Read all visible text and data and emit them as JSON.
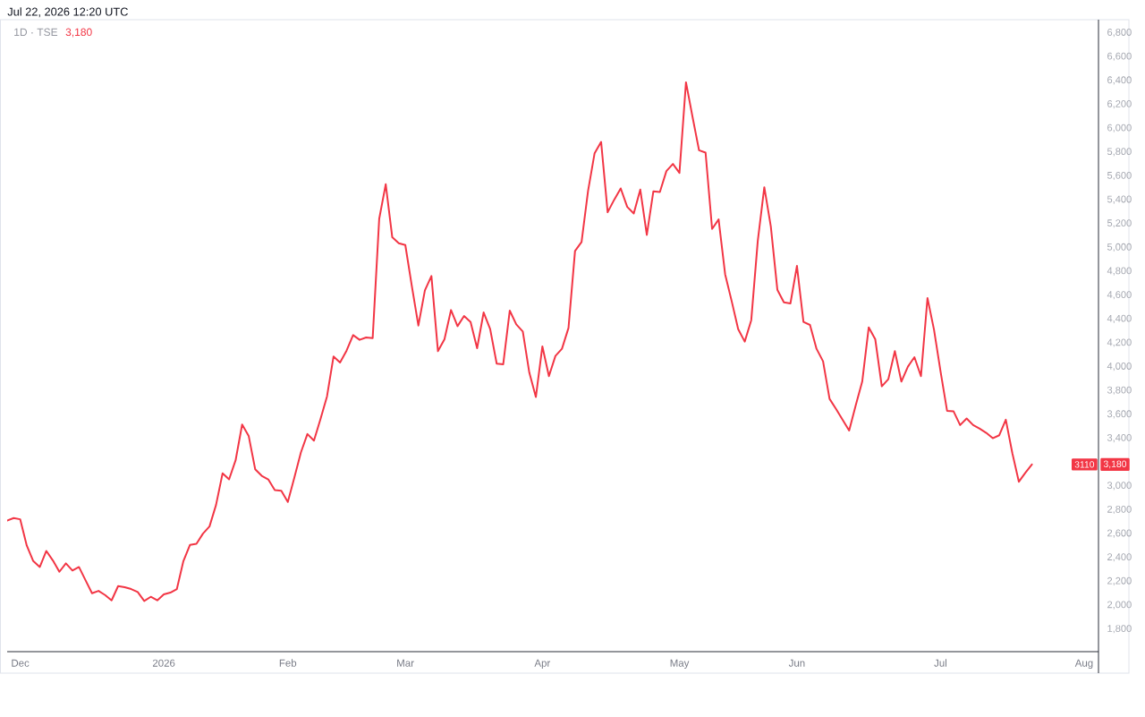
{
  "chart_data": {
    "type": "line",
    "title": "1D · TSE",
    "annotations": [
      "Jul 22, 2026 12:20 UTC",
      "3,180",
      {
        "text": "3110",
        "y": 3180
      },
      {
        "text": "3,180",
        "y": 3180
      }
    ],
    "categories": [
      null,
      null,
      "Dec",
      null,
      null,
      null,
      null,
      null,
      null,
      null,
      null,
      null,
      null,
      null,
      null,
      null,
      null,
      null,
      null,
      null,
      null,
      null,
      null,
      null,
      "2026",
      null,
      null,
      null,
      null,
      null,
      null,
      null,
      null,
      null,
      null,
      null,
      null,
      null,
      null,
      null,
      null,
      null,
      null,
      "Feb",
      null,
      null,
      null,
      null,
      null,
      null,
      null,
      null,
      null,
      null,
      null,
      null,
      null,
      null,
      null,
      null,
      null,
      "Mar",
      null,
      null,
      null,
      null,
      null,
      null,
      null,
      null,
      null,
      null,
      null,
      null,
      null,
      null,
      null,
      null,
      null,
      null,
      null,
      null,
      "Apr",
      null,
      null,
      null,
      null,
      null,
      null,
      null,
      null,
      null,
      null,
      null,
      null,
      null,
      null,
      null,
      null,
      null,
      null,
      null,
      null,
      "May",
      null,
      null,
      null,
      null,
      null,
      null,
      null,
      null,
      null,
      null,
      null,
      null,
      null,
      null,
      null,
      null,
      null,
      "Jun",
      null,
      null,
      null,
      null,
      null,
      null,
      null,
      null,
      null,
      null,
      null,
      null,
      null,
      null,
      null,
      null,
      null,
      null,
      null,
      null,
      null,
      "Jul",
      null,
      null,
      null,
      null,
      null,
      null,
      null,
      null,
      null,
      null,
      null,
      null,
      null,
      null,
      null,
      null,
      null,
      null,
      null,
      null,
      null,
      "Aug",
      null,
      null
    ],
    "values": [
      2710,
      2730,
      2720,
      2500,
      2370,
      2320,
      2455,
      2375,
      2280,
      2350,
      2290,
      2320,
      2210,
      2100,
      2120,
      2085,
      2040,
      2160,
      2150,
      2135,
      2110,
      2035,
      2070,
      2040,
      2090,
      2105,
      2135,
      2370,
      2505,
      2515,
      2600,
      2660,
      2840,
      3105,
      3055,
      3215,
      3515,
      3420,
      3140,
      3085,
      3055,
      2965,
      2960,
      2865,
      3070,
      3280,
      3435,
      3380,
      3560,
      3750,
      4085,
      4035,
      4135,
      4265,
      4225,
      4245,
      4240,
      5240,
      5530,
      5085,
      5035,
      5020,
      4675,
      4345,
      4640,
      4760,
      4130,
      4230,
      4475,
      4340,
      4425,
      4375,
      4155,
      4455,
      4315,
      4025,
      4020,
      4470,
      4355,
      4295,
      3950,
      3745,
      4170,
      3920,
      4090,
      4150,
      4325,
      4970,
      5045,
      5475,
      5790,
      5885,
      5295,
      5400,
      5495,
      5340,
      5285,
      5485,
      5105,
      5470,
      5465,
      5640,
      5700,
      5625,
      6385,
      6095,
      5815,
      5795,
      5155,
      5235,
      4775,
      4550,
      4315,
      4210,
      4390,
      5055,
      5505,
      5175,
      4645,
      4540,
      4530,
      4845,
      4375,
      4350,
      4150,
      4045,
      3730,
      3645,
      3555,
      3465,
      3675,
      3875,
      4330,
      4230,
      3835,
      3895,
      4130,
      3875,
      4000,
      4080,
      3920,
      4575,
      4310,
      3960,
      3630,
      3625,
      3510,
      3565,
      3510,
      3480,
      3445,
      3400,
      3425,
      3555,
      3275,
      3035,
      3110,
      3180,
      null,
      null,
      null,
      null,
      null,
      null,
      null,
      null,
      null,
      null
    ],
    "color": "#f23645",
    "ylim": [
      1610,
      6910
    ],
    "yticks": [
      {
        "value": 1800,
        "label": "1,800"
      },
      {
        "value": 2000,
        "label": "2,000"
      },
      {
        "value": 2200,
        "label": "2,200"
      },
      {
        "value": 2400,
        "label": "2,400"
      },
      {
        "value": 2600,
        "label": "2,600"
      },
      {
        "value": 2800,
        "label": "2,800"
      },
      {
        "value": 3000,
        "label": "3,000"
      },
      {
        "value": 3400,
        "label": "3,400"
      },
      {
        "value": 3600,
        "label": "3,600"
      },
      {
        "value": 3800,
        "label": "3,800"
      },
      {
        "value": 4000,
        "label": "4,000"
      },
      {
        "value": 4200,
        "label": "4,200"
      },
      {
        "value": 4400,
        "label": "4,400"
      },
      {
        "value": 4600,
        "label": "4,600"
      },
      {
        "value": 4800,
        "label": "4,800"
      },
      {
        "value": 5000,
        "label": "5,000"
      },
      {
        "value": 5200,
        "label": "5,200"
      },
      {
        "value": 5400,
        "label": "5,400"
      },
      {
        "value": 5600,
        "label": "5,600"
      },
      {
        "value": 5800,
        "label": "5,800"
      },
      {
        "value": 6000,
        "label": "6,000"
      },
      {
        "value": 6200,
        "label": "6,200"
      },
      {
        "value": 6400,
        "label": "6,400"
      },
      {
        "value": 6600,
        "label": "6,600"
      },
      {
        "value": 6800,
        "label": "6,800"
      }
    ]
  }
}
